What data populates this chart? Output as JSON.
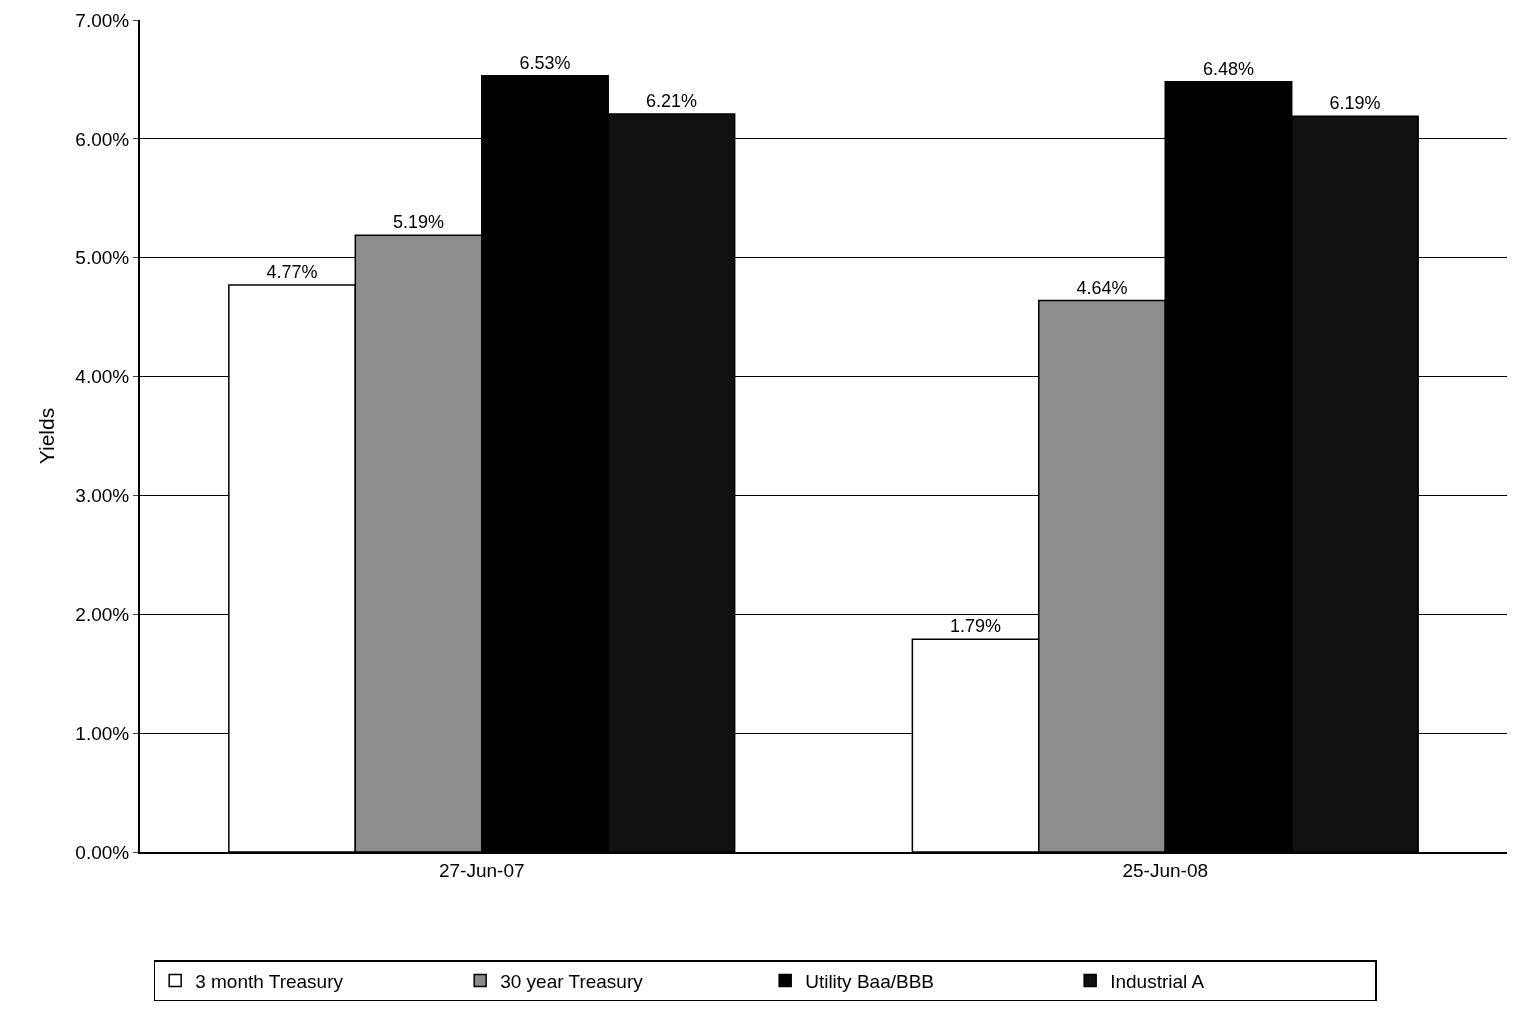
{
  "chart_data": {
    "type": "bar",
    "ylabel": "Yields",
    "categories": [
      "27-Jun-07",
      "25-Jun-08"
    ],
    "series": [
      {
        "name": "3 month Treasury",
        "color": "#ffffff",
        "values": [
          4.77,
          1.79
        ],
        "value_labels": [
          "4.77%",
          "1.79%"
        ]
      },
      {
        "name": "30 year Treasury",
        "color": "#8c8c8c",
        "values": [
          5.19,
          4.64
        ],
        "value_labels": [
          "5.19%",
          "4.64%"
        ]
      },
      {
        "name": "Utility Baa/BBB",
        "color": "#000000",
        "values": [
          6.53,
          6.48
        ],
        "value_labels": [
          "6.53%",
          "6.48%"
        ]
      },
      {
        "name": "Industrial A",
        "color": "#111111",
        "values": [
          6.21,
          6.19
        ],
        "value_labels": [
          "6.21%",
          "6.19%"
        ]
      }
    ],
    "ylim": [
      0,
      7
    ],
    "yticks": [
      {
        "value": 0,
        "label": "0.00%"
      },
      {
        "value": 1,
        "label": "1.00%"
      },
      {
        "value": 2,
        "label": "2.00%"
      },
      {
        "value": 3,
        "label": "3.00%"
      },
      {
        "value": 4,
        "label": "4.00%"
      },
      {
        "value": 5,
        "label": "5.00%"
      },
      {
        "value": 6,
        "label": "6.00%"
      },
      {
        "value": 7,
        "label": "7.00%"
      }
    ],
    "grid": "y",
    "legend": "bottom left"
  }
}
